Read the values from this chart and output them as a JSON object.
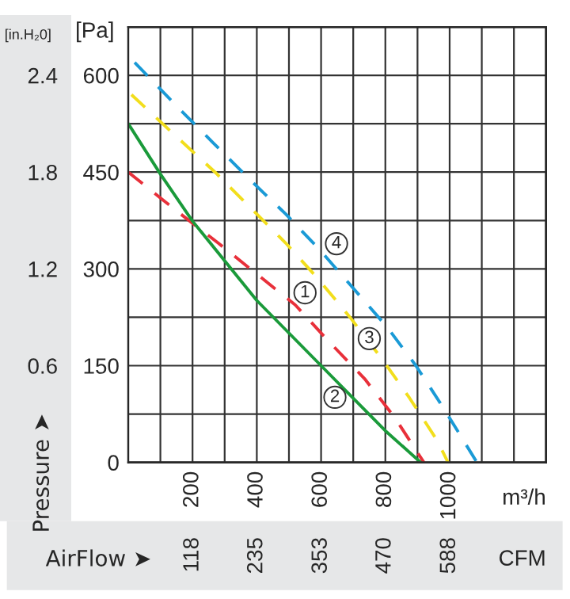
{
  "chart_data": {
    "type": "line",
    "xlabel": "m³/h",
    "ylabel": "[Pa]",
    "y2label": "[in.H₂0]",
    "x2label": "CFM",
    "xlim": [
      0,
      1300
    ],
    "ylim": [
      0,
      675
    ],
    "xticks": [
      {
        "value": 100,
        "label": null
      },
      200,
      {
        "value": 300,
        "label": null
      },
      400,
      {
        "value": 500,
        "label": null
      },
      600,
      {
        "value": 700,
        "label": null
      },
      800,
      {
        "value": 900,
        "label": null
      },
      1000,
      {
        "value": 1100,
        "label": null
      },
      {
        "value": 1200,
        "label": null
      }
    ],
    "yticks": [
      0,
      {
        "value": 75,
        "label": null
      },
      150,
      {
        "value": 225,
        "label": null
      },
      300,
      {
        "value": 375,
        "label": null
      },
      450,
      {
        "value": 525,
        "label": null
      },
      600
    ],
    "y2lim": [
      0,
      2.7
    ],
    "y2ticks": [
      0.6,
      1.2,
      1.8,
      2.4
    ],
    "x2lim": [
      0,
      765
    ],
    "x2ticks": [
      118,
      235,
      353,
      470,
      588
    ],
    "grid": true,
    "legend": false,
    "marker": "none",
    "series": [
      {
        "color": "#e8303a",
        "line_style": "dashed",
        "x": [
          0,
          150,
          280,
          400,
          520,
          625,
          735,
          830,
          920
        ],
        "values": [
          450,
          390,
          340,
          292,
          244,
          187,
          130,
          69,
          0
        ]
      },
      {
        "color": "#1a9a3a",
        "line_style": "solid",
        "x": [
          0,
          100,
          200,
          400,
          600,
          800,
          910
        ],
        "values": [
          525,
          447,
          374,
          251,
          150,
          49,
          0
        ]
      },
      {
        "color": "#f2de1c",
        "line_style": "dashed",
        "x": [
          10,
          150,
          270,
          380,
          490,
          590,
          690,
          790,
          875,
          960,
          995
        ],
        "values": [
          570,
          505,
          450,
          395,
          340,
          285,
          225,
          160,
          100,
          35,
          0
        ]
      },
      {
        "color": "#1a9ad6",
        "line_style": "dashed",
        "x": [
          20,
          155,
          265,
          375,
          490,
          595,
          700,
          805,
          895,
          980,
          1085
        ],
        "values": [
          620,
          550,
          495,
          440,
          385,
          330,
          270,
          210,
          150,
          85,
          0
        ]
      }
    ],
    "annotations": [
      "Pressure ➤",
      "AirFlow ➤",
      {
        "text": "1",
        "x": 550,
        "y": 263
      },
      {
        "text": "2",
        "x": 643,
        "y": 101
      },
      {
        "text": "3",
        "x": 750,
        "y": 192
      },
      {
        "text": "4",
        "x": 648,
        "y": 339
      }
    ]
  }
}
